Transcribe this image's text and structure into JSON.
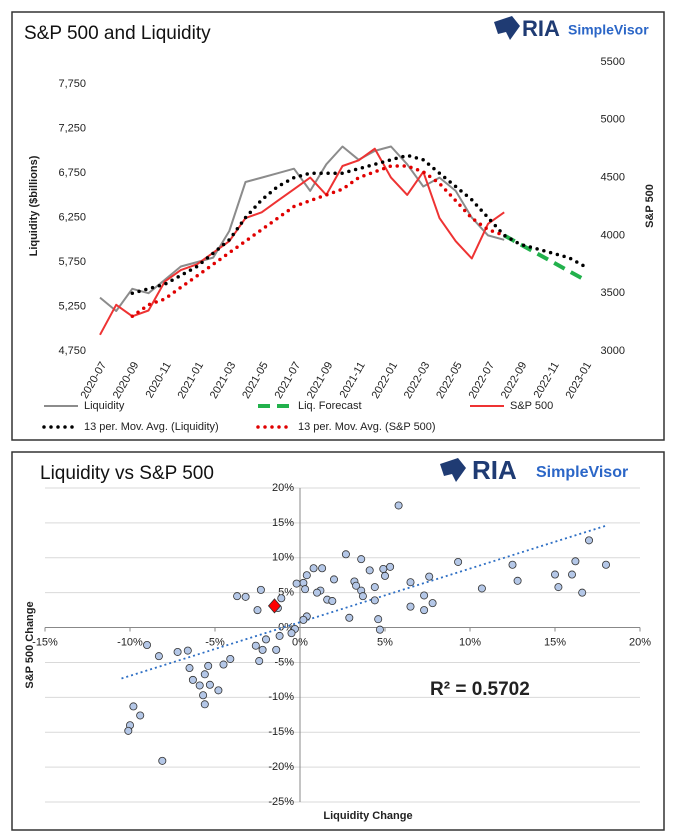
{
  "chart_data": [
    {
      "type": "line",
      "title": "S&P 500 and Liquidity",
      "brand": [
        "RIA",
        "SimpleVisor"
      ],
      "y_label": "Liquidity ($billions)",
      "y2_label": "S&P 500",
      "categories": [
        "2020-07",
        null,
        "2020-09",
        null,
        "2020-11",
        null,
        "2021-01",
        null,
        "2021-03",
        null,
        "2021-05",
        null,
        "2021-07",
        null,
        "2021-09",
        null,
        "2021-11",
        null,
        "2022-01",
        null,
        "2022-03",
        null,
        "2022-05",
        null,
        "2022-07",
        null,
        "2022-09",
        null,
        "2022-11",
        null,
        "2023-01"
      ],
      "ylim": [
        4750,
        8000
      ],
      "yticks": [
        {
          "value": 4750,
          "label": "4,750"
        },
        {
          "value": 5250,
          "label": "5,250"
        },
        {
          "value": 5750,
          "label": "5,750"
        },
        {
          "value": 6250,
          "label": "6,250"
        },
        {
          "value": 6750,
          "label": "6,750"
        },
        {
          "value": 7250,
          "label": "7,250"
        },
        {
          "value": 7750,
          "label": "7,750"
        }
      ],
      "y2lim": [
        3000,
        5500
      ],
      "y2ticks": [
        3000,
        3500,
        4000,
        4500,
        5000,
        5500
      ],
      "series": [
        {
          "name": "Liquidity",
          "color": "#8c8c8c",
          "style": "solid",
          "values": [
            5350,
            5200,
            5450,
            5400,
            5550,
            5700,
            5750,
            5800,
            6100,
            6650,
            6700,
            6750,
            6800,
            6550,
            6850,
            7050,
            6900,
            7000,
            7050,
            6850,
            6600,
            6700,
            6550,
            6250,
            6050,
            6000,
            null,
            null,
            null,
            null,
            null
          ]
        },
        {
          "name": "Liq. Forecast",
          "color": "#22b14c",
          "style": "dashed",
          "values": [
            null,
            null,
            null,
            null,
            null,
            null,
            null,
            null,
            null,
            null,
            null,
            null,
            null,
            null,
            null,
            null,
            null,
            null,
            null,
            null,
            null,
            null,
            null,
            null,
            null,
            6050,
            5950,
            5850,
            5750,
            5650,
            5550
          ]
        },
        {
          "name": "S&P 500",
          "color": "#ee3333",
          "style": "solid",
          "axis": "y2",
          "values": [
            3140,
            3400,
            3300,
            3350,
            3600,
            3700,
            3750,
            3850,
            3950,
            4150,
            4200,
            4300,
            4400,
            4500,
            4350,
            4600,
            4650,
            4750,
            4500,
            4350,
            4550,
            4150,
            3950,
            3800,
            4100,
            4200,
            null,
            null,
            null,
            null,
            null
          ]
        },
        {
          "name": "13 per. Mov. Avg. (Liquidity)",
          "color": "#000000",
          "style": "dotted",
          "values": [
            null,
            null,
            5400,
            5450,
            5500,
            5600,
            5700,
            5850,
            6000,
            6250,
            6450,
            6600,
            6700,
            6750,
            6750,
            6750,
            6800,
            6850,
            6900,
            6950,
            6900,
            6750,
            6600,
            6450,
            6250,
            6050,
            5950,
            5900,
            5850,
            5800,
            5700
          ]
        },
        {
          "name": "13 per. Mov. Avg. (S&P 500)",
          "color": "#e00000",
          "style": "dotted",
          "axis": "y2",
          "values": [
            null,
            null,
            3300,
            3400,
            3450,
            3550,
            3650,
            3750,
            3850,
            3950,
            4050,
            4150,
            4250,
            4300,
            4350,
            4400,
            4500,
            4550,
            4600,
            4600,
            4550,
            4450,
            4300,
            4150,
            4050,
            4000,
            null,
            null,
            null,
            null,
            null
          ]
        }
      ]
    },
    {
      "type": "scatter",
      "title": "Liquidity vs S&P 500",
      "brand": [
        "RIA",
        "SimpleVisor"
      ],
      "x_label": "Liquidity Change",
      "y_label": "S&P 500 Change",
      "annotation": "R² = 0.5702",
      "xlim": [
        -15,
        20
      ],
      "xticks": [
        {
          "value": -15,
          "label": "-15%"
        },
        {
          "value": -10,
          "label": "-10%"
        },
        {
          "value": -5,
          "label": "-5%"
        },
        {
          "value": 0,
          "label": "0%"
        },
        {
          "value": 5,
          "label": "5%"
        },
        {
          "value": 10,
          "label": "10%"
        },
        {
          "value": 15,
          "label": "15%"
        },
        {
          "value": 20,
          "label": "20%"
        }
      ],
      "ylim": [
        -25,
        20
      ],
      "yticks": [
        {
          "value": -25,
          "label": "-25%"
        },
        {
          "value": -20,
          "label": "-20%"
        },
        {
          "value": -15,
          "label": "-15%"
        },
        {
          "value": -10,
          "label": "-10%"
        },
        {
          "value": -5,
          "label": "-5%"
        },
        {
          "value": 0,
          "label": "0%"
        },
        {
          "value": 5,
          "label": "5%"
        },
        {
          "value": 10,
          "label": "10%"
        },
        {
          "value": 15,
          "label": "15%"
        },
        {
          "value": 20,
          "label": "20%"
        }
      ],
      "grid": true,
      "trendline": {
        "color": "#2e6fc4",
        "x": [
          -10.5,
          18
        ],
        "y": [
          -7.3,
          14.6
        ]
      },
      "series": [
        {
          "color": "#b4c7e7",
          "marker": "circle",
          "x": [
            5.8,
            2.7,
            3.6,
            0.8,
            1.3,
            5.3,
            4.9,
            4.1,
            9.3,
            12.5,
            16.2,
            17,
            18,
            0.4,
            0.2,
            -0.2,
            2,
            3.2,
            5,
            6.5,
            7.6,
            -3.7,
            -3.2,
            -2.3,
            0.3,
            1.2,
            1,
            3.3,
            3.6,
            4.4,
            3.7,
            1.6,
            1.9,
            4.4,
            6.5,
            7.3,
            7.8,
            10.7,
            12.8,
            15,
            15.2,
            16,
            16.6,
            7.3,
            4.6,
            2.9,
            0.4,
            0.2,
            -1.1,
            -2.5,
            -1.3,
            4.7,
            -0.3,
            -0.5,
            -1.2,
            -2,
            -2.6,
            -2.2,
            -1.4,
            -2.4,
            -4.1,
            -5.4,
            -4.5,
            -5.6,
            -6.5,
            -6.3,
            -5.9,
            -5.3,
            -7.2,
            -6.6,
            -8.3,
            -9,
            -4.8,
            -5.7,
            -5.6,
            -9.8,
            -9.4,
            -10,
            -10.1,
            -8.1
          ],
          "y": [
            17.5,
            10.5,
            9.8,
            8.5,
            8.5,
            8.7,
            8.4,
            8.2,
            9.4,
            9,
            9.5,
            12.5,
            9,
            7.5,
            6.4,
            6.3,
            6.9,
            6.6,
            7.4,
            6.5,
            7.3,
            4.5,
            4.4,
            5.4,
            5.5,
            5.3,
            5,
            6,
            5.3,
            5.8,
            4.5,
            4,
            3.8,
            3.9,
            3,
            4.6,
            3.5,
            5.6,
            6.7,
            7.6,
            5.8,
            7.6,
            5,
            2.5,
            1.2,
            1.4,
            1.6,
            1.1,
            4.2,
            2.5,
            2.8,
            -0.3,
            -0.2,
            -0.8,
            -1.2,
            -1.7,
            -2.6,
            -3.2,
            -3.2,
            -4.8,
            -4.5,
            -5.5,
            -5.3,
            -6.7,
            -5.8,
            -7.5,
            -8.3,
            -8.2,
            -3.5,
            -3.3,
            -4.1,
            -2.5,
            -9,
            -9.7,
            -11,
            -11.3,
            -12.6,
            -14,
            -14.8,
            -19.1
          ]
        },
        {
          "color": "#ff0000",
          "marker": "diamond",
          "x": [
            -1.5
          ],
          "y": [
            3.1
          ]
        }
      ]
    }
  ]
}
